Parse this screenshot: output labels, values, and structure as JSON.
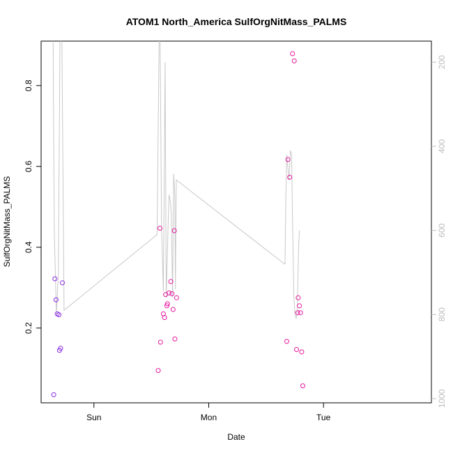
{
  "chart_data": {
    "type": "scatter",
    "title": "ATOM1 North_America SulfOrgNitMass_PALMS",
    "xlabel": "Date",
    "ylabel": "SulfOrgNitMass_PALMS",
    "x_axis": {
      "type": "time",
      "ticks": [
        {
          "label": "Sun",
          "value": 1.0
        },
        {
          "label": "Mon",
          "value": 2.0
        },
        {
          "label": "Tue",
          "value": 3.0
        }
      ],
      "range": [
        0.54,
        3.94
      ]
    },
    "y_axis_left": {
      "range": [
        0.015,
        0.91
      ],
      "ticks": [
        0.2,
        0.4,
        0.6,
        0.8
      ]
    },
    "y_axis_right": {
      "description": "altitude / pressure (inverted)",
      "range": [
        1010,
        150
      ],
      "ticks": [
        200,
        400,
        600,
        800,
        1000
      ],
      "color": "#bdbdbd"
    },
    "series": [
      {
        "color": "#8a2be2",
        "marker": "open-circle",
        "points": [
          {
            "x": 0.65,
            "y": 0.035
          },
          {
            "x": 0.66,
            "y": 0.322
          },
          {
            "x": 0.67,
            "y": 0.27
          },
          {
            "x": 0.68,
            "y": 0.235
          },
          {
            "x": 0.695,
            "y": 0.233
          },
          {
            "x": 0.7,
            "y": 0.145
          },
          {
            "x": 0.71,
            "y": 0.15
          },
          {
            "x": 0.725,
            "y": 0.312
          }
        ]
      },
      {
        "color": "#e6199e",
        "marker": "open-circle",
        "points": [
          {
            "x": 1.56,
            "y": 0.095
          },
          {
            "x": 1.575,
            "y": 0.447
          },
          {
            "x": 1.58,
            "y": 0.165
          },
          {
            "x": 1.605,
            "y": 0.235
          },
          {
            "x": 1.615,
            "y": 0.226
          },
          {
            "x": 1.625,
            "y": 0.283
          },
          {
            "x": 1.635,
            "y": 0.255
          },
          {
            "x": 1.64,
            "y": 0.26
          },
          {
            "x": 1.655,
            "y": 0.287
          },
          {
            "x": 1.67,
            "y": 0.315
          },
          {
            "x": 1.68,
            "y": 0.285
          },
          {
            "x": 1.69,
            "y": 0.246
          },
          {
            "x": 1.7,
            "y": 0.441
          },
          {
            "x": 1.705,
            "y": 0.173
          },
          {
            "x": 1.72,
            "y": 0.275
          },
          {
            "x": 2.68,
            "y": 0.167
          },
          {
            "x": 2.69,
            "y": 0.617
          },
          {
            "x": 2.705,
            "y": 0.573
          },
          {
            "x": 2.73,
            "y": 0.879
          },
          {
            "x": 2.745,
            "y": 0.861
          },
          {
            "x": 2.765,
            "y": 0.147
          },
          {
            "x": 2.775,
            "y": 0.238
          },
          {
            "x": 2.78,
            "y": 0.275
          },
          {
            "x": 2.79,
            "y": 0.255
          },
          {
            "x": 2.8,
            "y": 0.238
          },
          {
            "x": 2.81,
            "y": 0.141
          },
          {
            "x": 2.82,
            "y": 0.057
          }
        ]
      }
    ],
    "altitude_line": {
      "color": "#c8c8c8",
      "axis": "right",
      "points": [
        {
          "x": 0.643,
          "y": 100
        },
        {
          "x": 0.655,
          "y": 600
        },
        {
          "x": 0.673,
          "y": 800
        },
        {
          "x": 0.69,
          "y": 700
        },
        {
          "x": 0.7,
          "y": 300
        },
        {
          "x": 0.705,
          "y": 100
        },
        {
          "x": 0.72,
          "y": 100
        },
        {
          "x": 0.74,
          "y": 790
        },
        {
          "x": 1.55,
          "y": 610
        },
        {
          "x": 1.57,
          "y": 100
        },
        {
          "x": 1.575,
          "y": 100
        },
        {
          "x": 1.59,
          "y": 600
        },
        {
          "x": 1.605,
          "y": 745
        },
        {
          "x": 1.62,
          "y": 200
        },
        {
          "x": 1.63,
          "y": 760
        },
        {
          "x": 1.645,
          "y": 600
        },
        {
          "x": 1.655,
          "y": 515
        },
        {
          "x": 1.665,
          "y": 530
        },
        {
          "x": 1.675,
          "y": 560
        },
        {
          "x": 1.685,
          "y": 760
        },
        {
          "x": 1.695,
          "y": 465
        },
        {
          "x": 1.705,
          "y": 520
        },
        {
          "x": 1.71,
          "y": 740
        },
        {
          "x": 1.718,
          "y": 480
        },
        {
          "x": 2.66,
          "y": 680
        },
        {
          "x": 2.665,
          "y": 680
        },
        {
          "x": 2.672,
          "y": 520
        },
        {
          "x": 2.68,
          "y": 420
        },
        {
          "x": 2.69,
          "y": 450
        },
        {
          "x": 2.7,
          "y": 480
        },
        {
          "x": 2.712,
          "y": 410
        },
        {
          "x": 2.722,
          "y": 420
        },
        {
          "x": 2.732,
          "y": 600
        },
        {
          "x": 2.742,
          "y": 760
        },
        {
          "x": 2.752,
          "y": 800
        },
        {
          "x": 2.762,
          "y": 810
        },
        {
          "x": 2.772,
          "y": 790
        },
        {
          "x": 2.782,
          "y": 650
        },
        {
          "x": 2.79,
          "y": 600
        }
      ]
    }
  }
}
